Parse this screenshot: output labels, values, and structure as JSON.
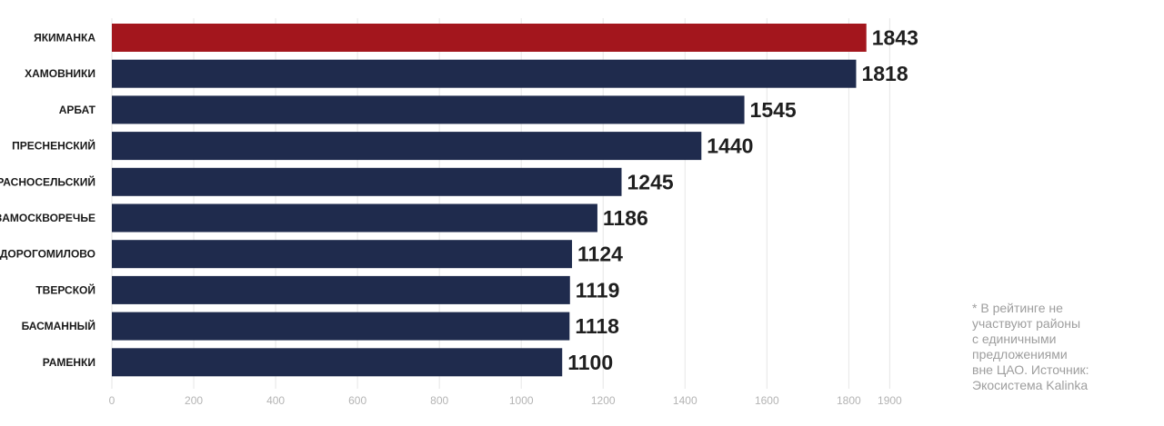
{
  "chart_data": {
    "type": "bar",
    "orientation": "horizontal",
    "categories": [
      "ЯКИМАНКА",
      "ХАМОВНИКИ",
      "АРБАТ",
      "ПРЕСНЕНСКИЙ",
      "КРАСНОСЕЛЬСКИЙ",
      "ЗАМОСКВОРЕЧЬЕ",
      "ДОРОГОМИЛОВО",
      "ТВЕРСКОЙ",
      "БАСМАННЫЙ",
      "РАМЕНКИ"
    ],
    "values": [
      1843,
      1818,
      1545,
      1440,
      1245,
      1186,
      1124,
      1119,
      1118,
      1100
    ],
    "value_labels": [
      "1843",
      "1818",
      "1545",
      "1440",
      "1245",
      "1186",
      "1124",
      "1119",
      "1118",
      "1100"
    ],
    "x_ticks": [
      0,
      200,
      400,
      600,
      800,
      1000,
      1200,
      1400,
      1600,
      1800,
      1900
    ],
    "x_tick_labels": [
      "0",
      "200",
      "400",
      "600",
      "800",
      "1000",
      "1200",
      "1400",
      "1600",
      "1800",
      "1900"
    ],
    "xlim": [
      0,
      1900
    ],
    "grid": "vertical",
    "highlight_index": 0,
    "colors": {
      "bar": "#1f2b4d",
      "highlight": "#a3161d",
      "grid": "#e6e6e6",
      "tick_text": "#b4b4b4"
    },
    "title": "",
    "xlabel": "",
    "ylabel": ""
  },
  "note": {
    "text": "* В рейтинге не\nучаствуют районы\nс единичными\nпредложениями\nвне ЦАО. Источник:\nЭкосистема Kalinka"
  }
}
